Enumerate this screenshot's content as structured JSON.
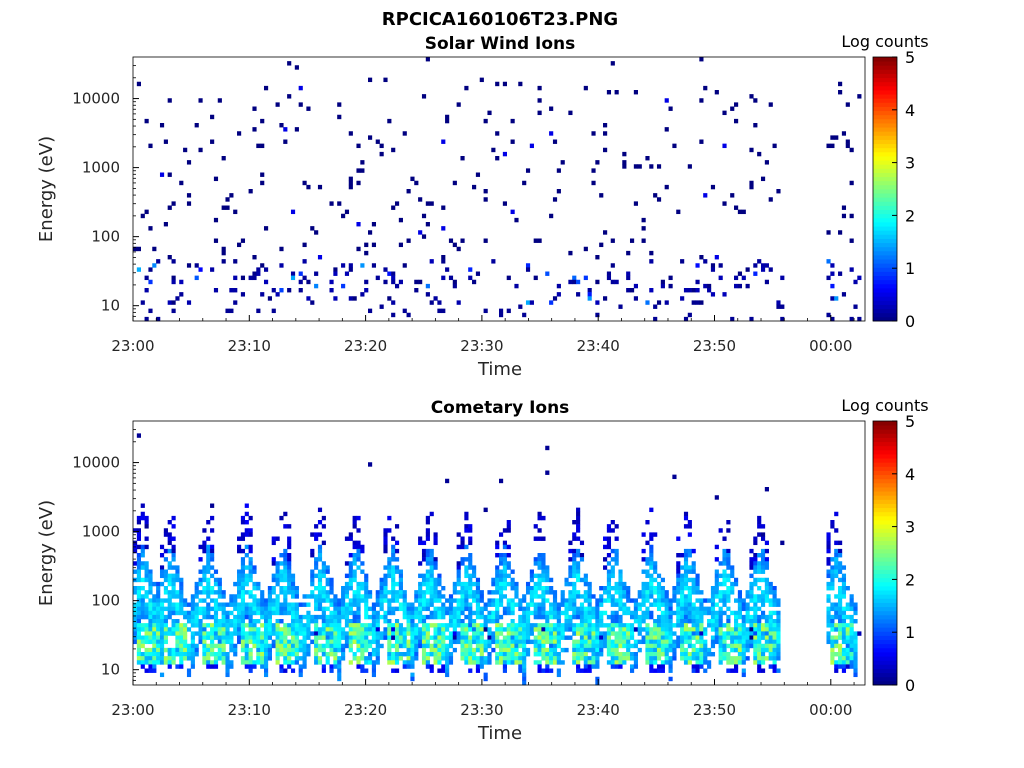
{
  "figure": {
    "title": "RPCICA160106T23.PNG"
  },
  "colormap": "jet",
  "chart_data": [
    {
      "type": "heatmap",
      "title": "Solar Wind Ions",
      "xlabel": "Time",
      "ylabel": "Energy (eV)",
      "y_scale": "log",
      "ylim": [
        6,
        40000
      ],
      "x_tick_labels": [
        "23:00",
        "23:10",
        "23:20",
        "23:30",
        "23:40",
        "23:50",
        "00:00"
      ],
      "y_tick_labels": [
        "10",
        "100",
        "1000",
        "10000"
      ],
      "colorbar": {
        "label": "Log counts",
        "ticks": [
          "0",
          "1",
          "2",
          "3",
          "4",
          "5"
        ],
        "range": [
          0,
          5
        ]
      },
      "data_gap_minutes": [
        56,
        59.5
      ],
      "description_of_values": "sparse single counts (log counts ~0) scattered across 10 eV to 20 keV; denser low-energy patches at 15-45 eV with values up to ~1.5"
    },
    {
      "type": "heatmap",
      "title": "Cometary Ions",
      "xlabel": "Time",
      "ylabel": "Energy (eV)",
      "y_scale": "log",
      "ylim": [
        6,
        40000
      ],
      "x_tick_labels": [
        "23:00",
        "23:10",
        "23:20",
        "23:30",
        "23:40",
        "23:50",
        "00:00"
      ],
      "y_tick_labels": [
        "10",
        "100",
        "1000",
        "10000"
      ],
      "colorbar": {
        "label": "Log counts",
        "ticks": [
          "0",
          "1",
          "2",
          "3",
          "4",
          "5"
        ],
        "range": [
          0,
          5
        ]
      },
      "data_gap_minutes": [
        56,
        59.5
      ],
      "bursts_minutes": [
        0.2,
        2.6,
        5.9,
        9.2,
        12.3,
        15.5,
        18.6,
        21.7,
        24.9,
        28.1,
        31.3,
        34.4,
        37.6,
        40.8,
        44.0,
        47.1,
        50.3,
        53.4,
        59.9
      ],
      "description_of_values": "periodic V-shaped bursts from ~10 eV to ~1 keV, peak log counts ~2.5-3 near 20-30 eV, ~1-1.5 at 100-300 eV"
    }
  ]
}
